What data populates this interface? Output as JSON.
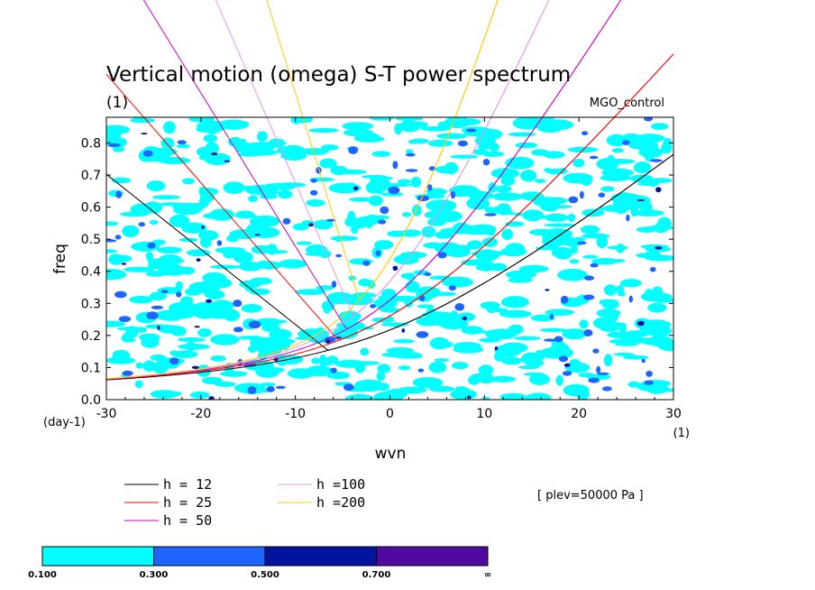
{
  "chart_data": {
    "type": "heatmap",
    "title": "Vertical motion (omega) S-T power spectrum",
    "subtitle": "(1)",
    "dataset_label": "MGO_control",
    "xlabel": "wvn",
    "ylabel": "freq",
    "x_unit": "(1)",
    "y_unit": "(day-1)",
    "xlim": [
      -30,
      30
    ],
    "ylim": [
      0,
      0.88
    ],
    "xticks": [
      "-30",
      "-20",
      "-10",
      "0",
      "10",
      "20",
      "30"
    ],
    "yticks": [
      "0.0",
      "0.1",
      "0.2",
      "0.3",
      "0.4",
      "0.5",
      "0.6",
      "0.7",
      "0.8"
    ],
    "level_note": "[ plev=50000 Pa ]",
    "contour_levels": [
      "0.100",
      "0.300",
      "0.500",
      "0.700",
      "∞"
    ],
    "level_colors": [
      "#00ffff",
      "#1e64ff",
      "#0014a0",
      "#500aa0"
    ],
    "dispersion_curves": [
      {
        "name": "h = 12",
        "h": 12,
        "color": "#000000"
      },
      {
        "name": "h = 25",
        "h": 25,
        "color": "#ff0000"
      },
      {
        "name": "h = 50",
        "h": 50,
        "color": "#c800c8"
      },
      {
        "name": "h =100",
        "h": 100,
        "color": "#e696e6"
      },
      {
        "name": "h =200",
        "h": 200,
        "color": "#ffc800"
      }
    ],
    "grid": false,
    "legend_position": "bottom"
  }
}
